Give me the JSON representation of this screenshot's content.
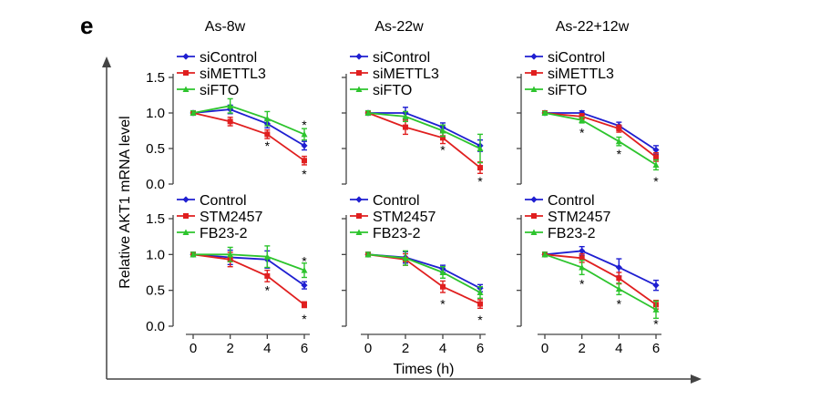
{
  "panel_label": "e",
  "ylabel": "Relative AKT1 mRNA level",
  "xlabel": "Times (h)",
  "colors": {
    "blue": "#1f1fd1",
    "red": "#e01f1f",
    "green": "#2dc42d",
    "axis": "#444444"
  },
  "chart_data": [
    {
      "type": "line",
      "title": "As-8w",
      "x": [
        0,
        2,
        4,
        6
      ],
      "ylim": [
        0,
        1.5
      ],
      "series": [
        {
          "name": "siControl",
          "color": "blue",
          "values": [
            1.0,
            1.05,
            0.85,
            0.54
          ],
          "err": [
            0.03,
            0.06,
            0.06,
            0.06
          ]
        },
        {
          "name": "siMETTL3",
          "color": "red",
          "values": [
            1.0,
            0.88,
            0.7,
            0.33
          ],
          "err": [
            0.03,
            0.06,
            0.06,
            0.06
          ]
        },
        {
          "name": "siFTO",
          "color": "green",
          "values": [
            1.0,
            1.1,
            0.92,
            0.7
          ],
          "err": [
            0.03,
            0.1,
            0.1,
            0.08
          ]
        }
      ],
      "significance": [
        {
          "x": 4,
          "y": 0.58,
          "label": "*"
        },
        {
          "x": 6,
          "y": 0.87,
          "label": "*"
        },
        {
          "x": 6,
          "y": 0.18,
          "label": "*"
        }
      ]
    },
    {
      "type": "line",
      "title": "As-22w",
      "x": [
        0,
        2,
        4,
        6
      ],
      "ylim": [
        0,
        1.5
      ],
      "series": [
        {
          "name": "siControl",
          "color": "blue",
          "values": [
            1.0,
            1.0,
            0.8,
            0.54
          ],
          "err": [
            0.03,
            0.08,
            0.06,
            0.08
          ]
        },
        {
          "name": "siMETTL3",
          "color": "red",
          "values": [
            1.0,
            0.8,
            0.65,
            0.23
          ],
          "err": [
            0.03,
            0.1,
            0.08,
            0.08
          ]
        },
        {
          "name": "siFTO",
          "color": "green",
          "values": [
            1.0,
            0.95,
            0.75,
            0.5
          ],
          "err": [
            0.03,
            0.07,
            0.08,
            0.2
          ]
        }
      ],
      "significance": [
        {
          "x": 4,
          "y": 0.52,
          "label": "*"
        },
        {
          "x": 6,
          "y": 0.08,
          "label": "*"
        }
      ]
    },
    {
      "type": "line",
      "title": "As-22+12w",
      "x": [
        0,
        2,
        4,
        6
      ],
      "ylim": [
        0,
        1.5
      ],
      "series": [
        {
          "name": "siControl",
          "color": "blue",
          "values": [
            1.0,
            1.0,
            0.82,
            0.48
          ],
          "err": [
            0.02,
            0.03,
            0.05,
            0.06
          ]
        },
        {
          "name": "siMETTL3",
          "color": "red",
          "values": [
            1.0,
            0.95,
            0.78,
            0.38
          ],
          "err": [
            0.02,
            0.04,
            0.05,
            0.06
          ]
        },
        {
          "name": "siFTO",
          "color": "green",
          "values": [
            1.0,
            0.9,
            0.6,
            0.27
          ],
          "err": [
            0.02,
            0.04,
            0.06,
            0.07
          ]
        }
      ],
      "significance": [
        {
          "x": 2,
          "y": 0.76,
          "label": "*"
        },
        {
          "x": 4,
          "y": 0.46,
          "label": "*"
        },
        {
          "x": 6,
          "y": 0.08,
          "label": "*"
        }
      ]
    },
    {
      "type": "line",
      "title": "",
      "x": [
        0,
        2,
        4,
        6
      ],
      "ylim": [
        0,
        1.5
      ],
      "series": [
        {
          "name": "Control",
          "color": "blue",
          "values": [
            1.0,
            0.96,
            0.93,
            0.57
          ],
          "err": [
            0.03,
            0.1,
            0.12,
            0.05
          ]
        },
        {
          "name": "STM2457",
          "color": "red",
          "values": [
            1.0,
            0.93,
            0.7,
            0.3
          ],
          "err": [
            0.03,
            0.1,
            0.08,
            0.04
          ]
        },
        {
          "name": "FB23-2",
          "color": "green",
          "values": [
            1.0,
            1.0,
            0.97,
            0.78
          ],
          "err": [
            0.03,
            0.1,
            0.15,
            0.1
          ]
        }
      ],
      "significance": [
        {
          "x": 4,
          "y": 0.54,
          "label": "*"
        },
        {
          "x": 6,
          "y": 0.95,
          "label": "*"
        },
        {
          "x": 6,
          "y": 0.14,
          "label": "*"
        }
      ]
    },
    {
      "type": "line",
      "title": "",
      "x": [
        0,
        2,
        4,
        6
      ],
      "ylim": [
        0,
        1.5
      ],
      "series": [
        {
          "name": "Control",
          "color": "blue",
          "values": [
            1.0,
            0.96,
            0.8,
            0.53
          ],
          "err": [
            0.03,
            0.08,
            0.05,
            0.05
          ]
        },
        {
          "name": "STM2457",
          "color": "red",
          "values": [
            1.0,
            0.93,
            0.55,
            0.31
          ],
          "err": [
            0.03,
            0.08,
            0.08,
            0.06
          ]
        },
        {
          "name": "FB23-2",
          "color": "green",
          "values": [
            1.0,
            0.95,
            0.75,
            0.47
          ],
          "err": [
            0.03,
            0.1,
            0.08,
            0.08
          ]
        }
      ],
      "significance": [
        {
          "x": 4,
          "y": 0.35,
          "label": "*"
        },
        {
          "x": 6,
          "y": 0.13,
          "label": "*"
        }
      ]
    },
    {
      "type": "line",
      "title": "",
      "x": [
        0,
        2,
        4,
        6
      ],
      "ylim": [
        0,
        1.5
      ],
      "series": [
        {
          "name": "Control",
          "color": "blue",
          "values": [
            1.0,
            1.05,
            0.82,
            0.57
          ],
          "err": [
            0.03,
            0.06,
            0.12,
            0.07
          ]
        },
        {
          "name": "STM2457",
          "color": "red",
          "values": [
            1.0,
            0.95,
            0.67,
            0.3
          ],
          "err": [
            0.03,
            0.06,
            0.08,
            0.06
          ]
        },
        {
          "name": "FB23-2",
          "color": "green",
          "values": [
            1.0,
            0.82,
            0.52,
            0.23
          ],
          "err": [
            0.03,
            0.1,
            0.08,
            0.12
          ]
        }
      ],
      "significance": [
        {
          "x": 2,
          "y": 0.63,
          "label": "*"
        },
        {
          "x": 4,
          "y": 0.35,
          "label": "*"
        },
        {
          "x": 6,
          "y": 0.07,
          "label": "*"
        }
      ]
    }
  ],
  "y_ticks": [
    "0.0",
    "0.5",
    "1.0",
    "1.5"
  ],
  "x_ticks": [
    "0",
    "2",
    "4",
    "6"
  ]
}
